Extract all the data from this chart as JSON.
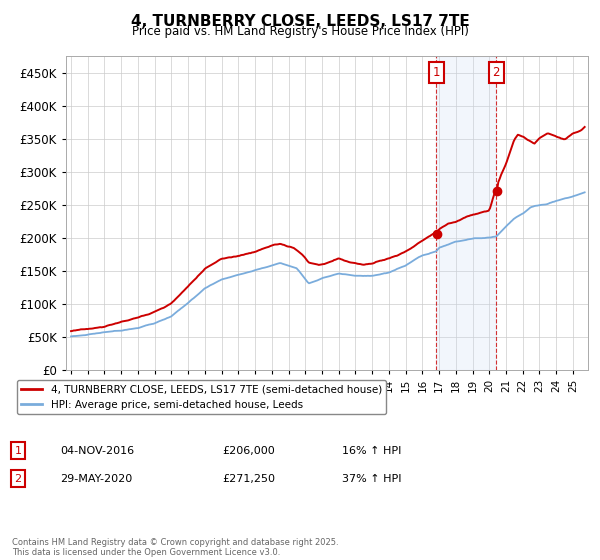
{
  "title": "4, TURNBERRY CLOSE, LEEDS, LS17 7TE",
  "subtitle": "Price paid vs. HM Land Registry's House Price Index (HPI)",
  "ylim": [
    0,
    475000
  ],
  "yticks": [
    0,
    50000,
    100000,
    150000,
    200000,
    250000,
    300000,
    350000,
    400000,
    450000
  ],
  "ytick_labels": [
    "£0",
    "£50K",
    "£100K",
    "£150K",
    "£200K",
    "£250K",
    "£300K",
    "£350K",
    "£400K",
    "£450K"
  ],
  "price_color": "#cc0000",
  "hpi_color": "#7aacdc",
  "annotation_box_color": "#cc0000",
  "shading_color": "#ccddf5",
  "point1_x": 2016.84,
  "point1_y": 206000,
  "point2_x": 2020.42,
  "point2_y": 271250,
  "point1_label": "1",
  "point1_date": "04-NOV-2016",
  "point1_price": "£206,000",
  "point1_hpi": "16% ↑ HPI",
  "point2_label": "2",
  "point2_date": "29-MAY-2020",
  "point2_price": "£271,250",
  "point2_hpi": "37% ↑ HPI",
  "legend_label_price": "4, TURNBERRY CLOSE, LEEDS, LS17 7TE (semi-detached house)",
  "legend_label_hpi": "HPI: Average price, semi-detached house, Leeds",
  "footer": "Contains HM Land Registry data © Crown copyright and database right 2025.\nThis data is licensed under the Open Government Licence v3.0.",
  "background_color": "#ffffff",
  "plot_bg_color": "#ffffff",
  "grid_color": "#cccccc",
  "xlim_left": 1994.7,
  "xlim_right": 2025.9,
  "xtick_years": [
    1995,
    1996,
    1997,
    1998,
    1999,
    2000,
    2001,
    2002,
    2003,
    2004,
    2005,
    2006,
    2007,
    2008,
    2009,
    2010,
    2011,
    2012,
    2013,
    2014,
    2015,
    2016,
    2017,
    2018,
    2019,
    2020,
    2021,
    2022,
    2023,
    2024,
    2025
  ]
}
